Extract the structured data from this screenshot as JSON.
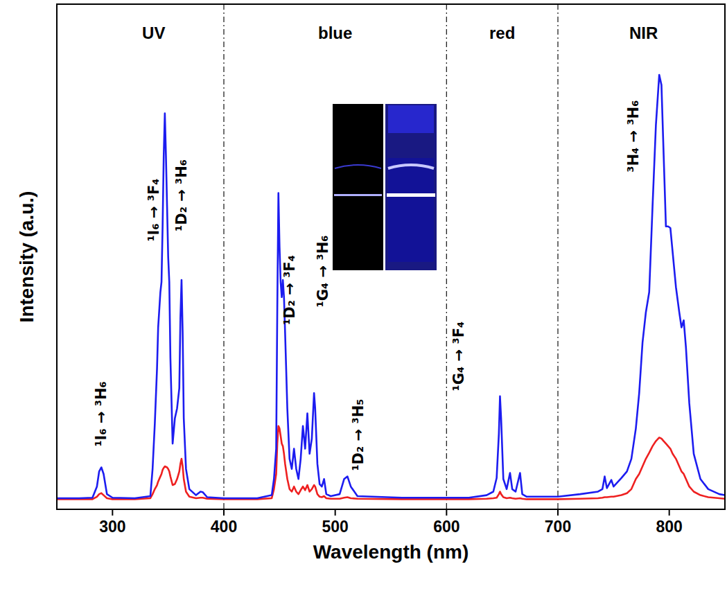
{
  "chart_data": {
    "type": "line",
    "x_label": "Wavelength (nm)",
    "y_label": "Intensity (a.u.)",
    "xlim": [
      250,
      850
    ],
    "ylim": [
      0,
      1
    ],
    "xticks": [
      300,
      400,
      500,
      600,
      700,
      800
    ],
    "tick_labels": "x",
    "grid": false,
    "x": [
      250,
      270,
      282,
      286,
      288,
      290,
      292,
      295,
      300,
      320,
      334,
      336,
      338,
      340,
      341,
      343,
      344,
      345,
      346,
      347,
      348,
      349,
      350,
      351,
      352,
      354,
      356,
      358,
      360,
      361,
      362,
      363,
      364,
      366,
      369,
      375,
      379,
      381,
      385,
      400,
      430,
      443,
      445,
      447,
      448,
      449,
      450,
      451,
      452,
      453,
      454,
      455,
      457,
      459,
      461,
      463,
      465,
      467,
      469,
      471,
      473,
      475,
      477,
      479,
      481,
      482,
      484,
      486,
      488,
      490,
      492,
      496,
      504,
      508,
      511,
      514,
      520,
      560,
      620,
      636,
      642,
      645,
      647,
      648,
      649,
      651,
      654,
      657,
      659,
      662,
      666,
      668,
      672,
      700,
      720,
      736,
      740,
      742,
      744,
      748,
      750,
      757,
      762,
      766,
      770,
      773,
      776,
      779,
      782,
      785,
      788,
      791,
      793,
      795,
      797,
      799,
      801,
      803,
      806,
      809,
      811,
      813,
      815,
      818,
      822,
      828,
      835,
      845,
      850
    ],
    "series": [
      {
        "color": "#1c1cf0",
        "values": [
          0.022,
          0.022,
          0.023,
          0.045,
          0.075,
          0.083,
          0.07,
          0.03,
          0.023,
          0.022,
          0.026,
          0.08,
          0.17,
          0.28,
          0.36,
          0.43,
          0.45,
          0.56,
          0.7,
          0.784,
          0.7,
          0.6,
          0.5,
          0.45,
          0.3,
          0.13,
          0.18,
          0.2,
          0.24,
          0.38,
          0.454,
          0.35,
          0.18,
          0.08,
          0.04,
          0.028,
          0.035,
          0.034,
          0.024,
          0.022,
          0.022,
          0.028,
          0.06,
          0.12,
          0.4,
          0.626,
          0.52,
          0.45,
          0.42,
          0.454,
          0.42,
          0.35,
          0.2,
          0.1,
          0.08,
          0.12,
          0.08,
          0.06,
          0.1,
          0.165,
          0.12,
          0.19,
          0.11,
          0.14,
          0.23,
          0.2,
          0.09,
          0.05,
          0.045,
          0.06,
          0.03,
          0.026,
          0.03,
          0.06,
          0.065,
          0.045,
          0.026,
          0.023,
          0.023,
          0.028,
          0.035,
          0.062,
          0.15,
          0.224,
          0.18,
          0.06,
          0.04,
          0.072,
          0.04,
          0.035,
          0.072,
          0.03,
          0.025,
          0.025,
          0.03,
          0.035,
          0.04,
          0.065,
          0.042,
          0.058,
          0.045,
          0.062,
          0.075,
          0.1,
          0.16,
          0.23,
          0.33,
          0.39,
          0.43,
          0.6,
          0.76,
          0.86,
          0.84,
          0.7,
          0.56,
          0.56,
          0.557,
          0.51,
          0.44,
          0.39,
          0.36,
          0.374,
          0.32,
          0.21,
          0.11,
          0.06,
          0.04,
          0.03,
          0.028
        ]
      },
      {
        "color": "#ee2020",
        "values": [
          0.02,
          0.02,
          0.02,
          0.025,
          0.03,
          0.032,
          0.028,
          0.022,
          0.02,
          0.02,
          0.022,
          0.03,
          0.04,
          0.048,
          0.055,
          0.065,
          0.07,
          0.078,
          0.082,
          0.085,
          0.084,
          0.083,
          0.08,
          0.075,
          0.065,
          0.048,
          0.05,
          0.06,
          0.075,
          0.09,
          0.1,
          0.085,
          0.06,
          0.035,
          0.025,
          0.022,
          0.023,
          0.023,
          0.021,
          0.02,
          0.02,
          0.022,
          0.04,
          0.07,
          0.13,
          0.165,
          0.16,
          0.145,
          0.13,
          0.125,
          0.11,
          0.09,
          0.06,
          0.04,
          0.035,
          0.045,
          0.035,
          0.03,
          0.038,
          0.045,
          0.038,
          0.048,
          0.035,
          0.04,
          0.048,
          0.045,
          0.03,
          0.025,
          0.024,
          0.026,
          0.022,
          0.021,
          0.021,
          0.023,
          0.024,
          0.022,
          0.021,
          0.02,
          0.02,
          0.021,
          0.022,
          0.023,
          0.03,
          0.035,
          0.03,
          0.024,
          0.022,
          0.023,
          0.022,
          0.021,
          0.022,
          0.021,
          0.02,
          0.02,
          0.021,
          0.022,
          0.023,
          0.024,
          0.024,
          0.025,
          0.025,
          0.028,
          0.032,
          0.04,
          0.06,
          0.07,
          0.085,
          0.1,
          0.112,
          0.125,
          0.135,
          0.142,
          0.14,
          0.135,
          0.13,
          0.125,
          0.12,
          0.11,
          0.1,
          0.085,
          0.075,
          0.07,
          0.06,
          0.045,
          0.035,
          0.028,
          0.024,
          0.022,
          0.021
        ]
      }
    ],
    "dividers": [
      400,
      600,
      700
    ],
    "regions": [
      {
        "label": "UV",
        "x": 337
      },
      {
        "label": "blue",
        "x": 500
      },
      {
        "label": "red",
        "x": 650
      },
      {
        "label": "NIR",
        "x": 777
      }
    ],
    "annotations": [
      {
        "text": "¹I₆ → ³H₆",
        "x": 290,
        "y": 0.124
      },
      {
        "text": "¹I₆ → ³F₄",
        "x": 337,
        "y": 0.53
      },
      {
        "text": "¹D₂ → ³H₆",
        "x": 362,
        "y": 0.55
      },
      {
        "text": "¹D₂ → ³F₄",
        "x": 459,
        "y": 0.365
      },
      {
        "text": "¹G₄ → ³H₆",
        "x": 489,
        "y": 0.4
      },
      {
        "text": "¹D₂ → ³H₅",
        "x": 521,
        "y": 0.076
      },
      {
        "text": "¹G₄ → ³F₄",
        "x": 611,
        "y": 0.234
      },
      {
        "text": "³H₄ → ³H₆",
        "x": 768,
        "y": 0.667
      }
    ]
  }
}
